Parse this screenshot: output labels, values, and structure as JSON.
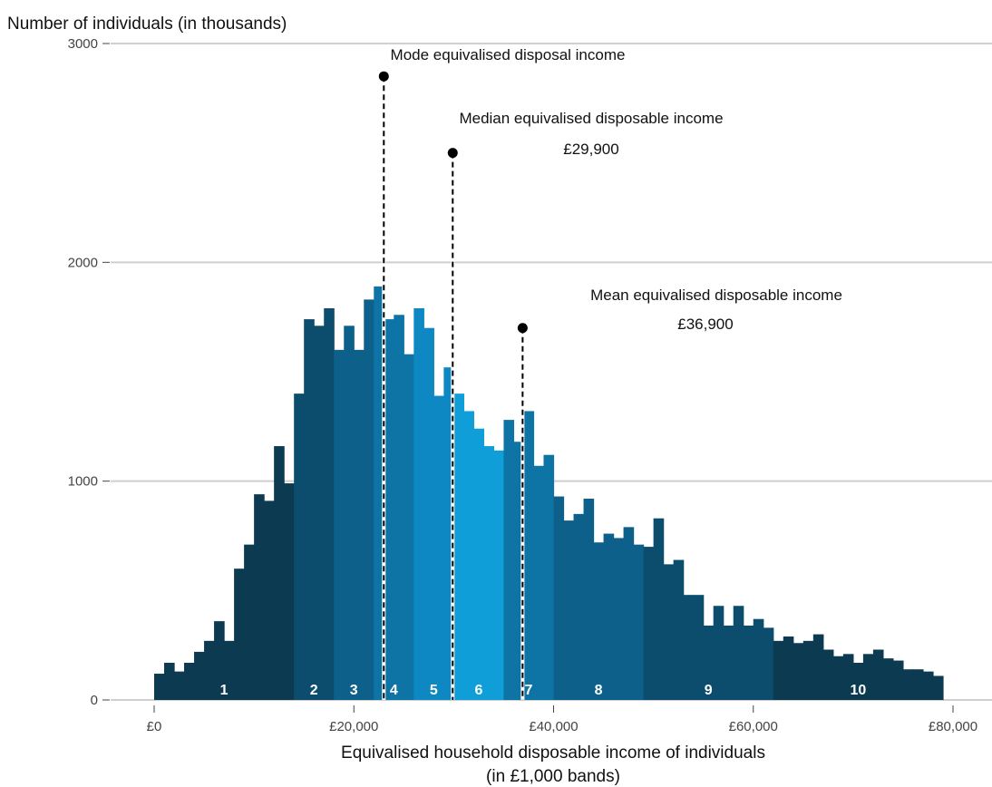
{
  "chart_data": {
    "type": "bar",
    "ylabel": "Number of individuals (in thousands)",
    "xlabel_line1": "Equivalised household disposable income of individuals",
    "xlabel_line2": "(in £1,000 bands)",
    "ylim": [
      0,
      3000
    ],
    "xlim": [
      0,
      80000
    ],
    "grid": true,
    "y_ticks": [
      "0",
      "1000",
      "2000",
      "3000"
    ],
    "y_tick_values": [
      0,
      1000,
      2000,
      3000
    ],
    "x_ticks": [
      "£0",
      "£20,000",
      "£40,000",
      "£60,000",
      "£80,000"
    ],
    "x_tick_values": [
      0,
      20000,
      40000,
      60000,
      80000
    ],
    "band_width": 1000,
    "band_start": 0,
    "values": [
      120,
      170,
      130,
      170,
      220,
      270,
      360,
      270,
      600,
      710,
      940,
      910,
      1160,
      990,
      1400,
      1740,
      1710,
      1790,
      1600,
      1710,
      1600,
      1830,
      1890,
      1740,
      1760,
      1580,
      1790,
      1700,
      1390,
      1520,
      1400,
      1320,
      1240,
      1160,
      1140,
      1280,
      1180,
      1320,
      1070,
      1120,
      930,
      820,
      850,
      920,
      720,
      760,
      740,
      790,
      710,
      700,
      830,
      620,
      640,
      480,
      480,
      340,
      430,
      340,
      430,
      340,
      370,
      330,
      270,
      290,
      260,
      270,
      300,
      230,
      200,
      210,
      170,
      210,
      230,
      190,
      180,
      140,
      140,
      130,
      110
    ],
    "decile_labels": [
      "1",
      "2",
      "3",
      "4",
      "5",
      "6",
      "7",
      "8",
      "9",
      "10"
    ],
    "decile_bounds": [
      0,
      14,
      18,
      22,
      26,
      30,
      35,
      40,
      49,
      62,
      79
    ],
    "decile_label_pos": [
      7,
      16,
      20,
      24,
      28,
      32.5,
      37.5,
      44.5,
      55.5,
      70.5
    ],
    "decile_colors": [
      "#0b3a51",
      "#0c4d6e",
      "#0d6089",
      "#0e74a6",
      "#0e88c2",
      "#109ed8",
      "#0e74a6",
      "#0d6089",
      "#0c4d6e",
      "#0b3a51"
    ],
    "annotations": [
      {
        "lines": [
          "Mode  equivalised disposal income"
        ],
        "x": 23000,
        "marker_y": 2850
      },
      {
        "lines": [
          "Median equivalised disposable income",
          "£29,900"
        ],
        "x": 29900,
        "marker_y": 2500
      },
      {
        "lines": [
          "Mean equivalised disposable income",
          "£36,900"
        ],
        "x": 36900,
        "marker_y": 1700
      }
    ]
  }
}
